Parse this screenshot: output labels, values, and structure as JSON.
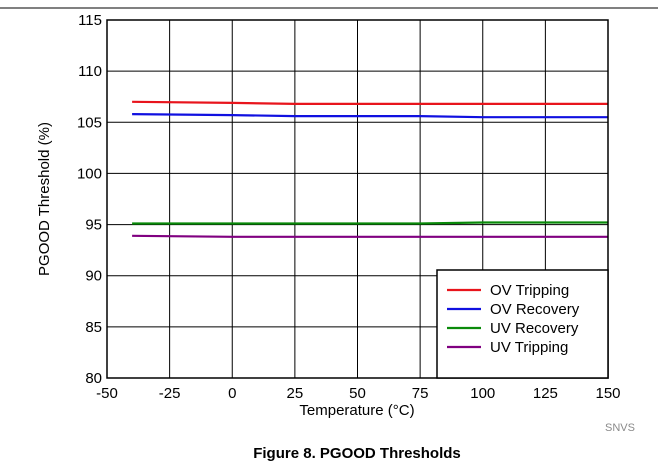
{
  "figure": {
    "caption": "Figure 8. PGOOD Thresholds",
    "doc_code": "SNVS"
  },
  "chart_data": {
    "type": "line",
    "xlabel": "Temperature (°C)",
    "ylabel": "PGOOD Threshold (%)",
    "xlim": [
      -50,
      150
    ],
    "ylim": [
      80,
      115
    ],
    "x_ticks": [
      -50,
      -25,
      0,
      25,
      50,
      75,
      100,
      125,
      150
    ],
    "y_ticks": [
      80,
      85,
      90,
      95,
      100,
      105,
      110,
      115
    ],
    "grid": true,
    "legend_position": "bottom-right",
    "series": [
      {
        "name": "OV Tripping",
        "color": "#e8141c",
        "x": [
          -40,
          0,
          25,
          50,
          75,
          100,
          125,
          150
        ],
        "y": [
          107.0,
          106.9,
          106.8,
          106.8,
          106.8,
          106.8,
          106.8,
          106.8
        ]
      },
      {
        "name": "OV Recovery",
        "color": "#1010e0",
        "x": [
          -40,
          0,
          25,
          50,
          75,
          100,
          125,
          150
        ],
        "y": [
          105.8,
          105.7,
          105.6,
          105.6,
          105.6,
          105.5,
          105.5,
          105.5
        ]
      },
      {
        "name": "UV Recovery",
        "color": "#0a8a0a",
        "x": [
          -40,
          0,
          25,
          50,
          75,
          100,
          125,
          150
        ],
        "y": [
          95.1,
          95.1,
          95.1,
          95.1,
          95.1,
          95.2,
          95.2,
          95.2
        ]
      },
      {
        "name": "UV Tripping",
        "color": "#800080",
        "x": [
          -40,
          0,
          25,
          50,
          75,
          100,
          125,
          150
        ],
        "y": [
          93.9,
          93.8,
          93.8,
          93.8,
          93.8,
          93.8,
          93.8,
          93.8
        ]
      }
    ]
  }
}
